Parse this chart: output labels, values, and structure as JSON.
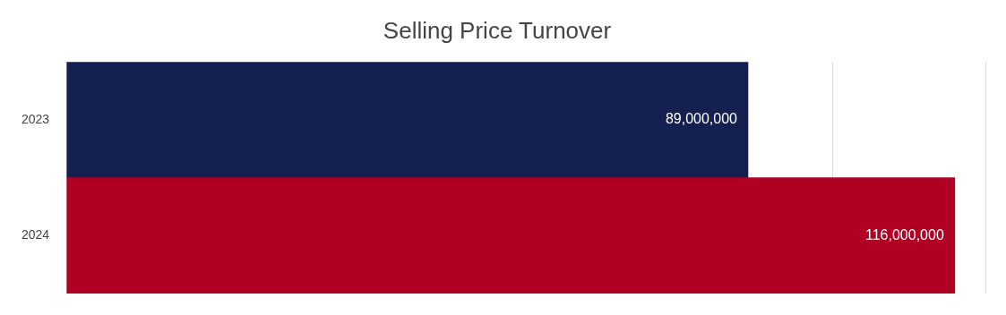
{
  "chart_data": {
    "type": "bar",
    "orientation": "horizontal",
    "title": "Selling Price Turnover",
    "categories": [
      "2023",
      "2024"
    ],
    "values": [
      89000000,
      116000000
    ],
    "colors": [
      "#14204f",
      "#b00024"
    ],
    "value_labels": [
      "89,000,000",
      "116,000,000"
    ],
    "grid": "x",
    "legend": false
  }
}
